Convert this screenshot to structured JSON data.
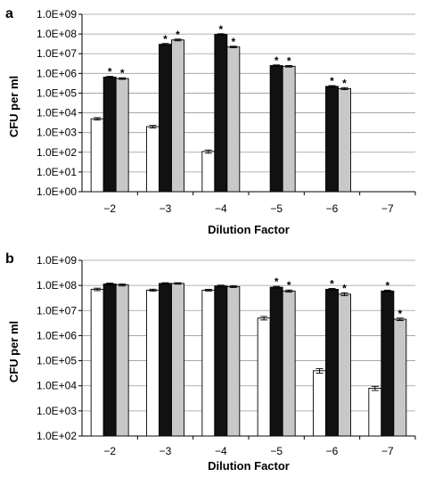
{
  "chart_data": [
    {
      "panel_label": "a",
      "type": "bar",
      "log_scale": true,
      "ylabel": "CFU per ml",
      "xlabel": "Dilution Factor",
      "categories": [
        "−2",
        "−3",
        "−4",
        "−5",
        "−6",
        "−7"
      ],
      "ylim": [
        1,
        1000000000
      ],
      "yticks": [
        "1.0E+00",
        "1.0E+01",
        "1.0E+02",
        "1.0E+03",
        "1.0E+04",
        "1.0E+05",
        "1.0E+06",
        "1.0E+07",
        "1.0E+08",
        "1.0E+09"
      ],
      "grid": true,
      "legend": "none",
      "series": [
        {
          "fill": "#ffffff",
          "values": [
            5000,
            2000,
            110,
            null,
            null,
            null
          ],
          "errors": [
            700,
            300,
            20,
            null,
            null,
            null
          ],
          "significant": [
            false,
            false,
            false,
            false,
            false,
            false
          ]
        },
        {
          "fill": "#111111",
          "values": [
            650000,
            30000000,
            95000000,
            2500000,
            220000,
            null
          ],
          "errors": [
            60000,
            3000000,
            8000000,
            200000,
            20000,
            null
          ],
          "significant": [
            true,
            true,
            true,
            true,
            true,
            false
          ]
        },
        {
          "fill": "#c8c8c8",
          "values": [
            550000,
            50000000,
            22000000,
            2300000,
            170000,
            null
          ],
          "errors": [
            50000,
            5000000,
            2000000,
            200000,
            20000,
            null
          ],
          "significant": [
            true,
            true,
            true,
            true,
            true,
            false
          ]
        }
      ]
    },
    {
      "panel_label": "b",
      "type": "bar",
      "log_scale": true,
      "ylabel": "CFU per ml",
      "xlabel": "Dilution Factor",
      "categories": [
        "−2",
        "−3",
        "−4",
        "−5",
        "−6",
        "−7"
      ],
      "ylim": [
        100,
        1000000000
      ],
      "yticks": [
        "1.0E+02",
        "1.0E+03",
        "1.0E+04",
        "1.0E+05",
        "1.0E+06",
        "1.0E+07",
        "1.0E+08",
        "1.0E+09"
      ],
      "grid": true,
      "legend": "none",
      "series": [
        {
          "fill": "#ffffff",
          "values": [
            70000000,
            65000000,
            65000000,
            5000000,
            40000,
            8000
          ],
          "errors": [
            8000000,
            6000000,
            5000000,
            800000,
            8000,
            1500
          ],
          "significant": [
            false,
            false,
            false,
            false,
            false,
            false
          ]
        },
        {
          "fill": "#111111",
          "values": [
            115000000,
            120000000,
            95000000,
            85000000,
            70000000,
            60000000
          ],
          "errors": [
            10000000,
            8000000,
            8000000,
            7000000,
            6000000,
            5000000
          ],
          "significant": [
            false,
            false,
            false,
            true,
            true,
            true
          ]
        },
        {
          "fill": "#c8c8c8",
          "values": [
            105000000,
            120000000,
            90000000,
            60000000,
            45000000,
            4500000
          ],
          "errors": [
            10000000,
            8000000,
            8000000,
            6000000,
            6000000,
            500000
          ],
          "significant": [
            false,
            false,
            false,
            true,
            true,
            true
          ]
        }
      ]
    }
  ]
}
